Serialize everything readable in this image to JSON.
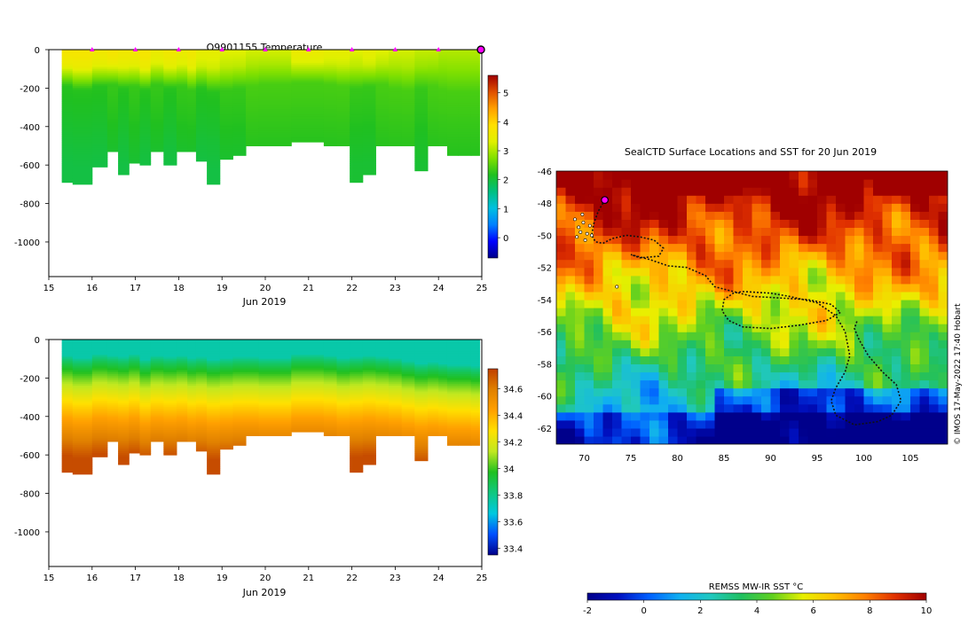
{
  "colors": {
    "temp_scale": [
      "#00008b",
      "#0000ff",
      "#0080ff",
      "#00c0e0",
      "#00c080",
      "#20c020",
      "#80e000",
      "#e0f000",
      "#ffe000",
      "#ffa000",
      "#e05000",
      "#a00000"
    ],
    "sal_scale": [
      "#00008b",
      "#0050ff",
      "#00c8e0",
      "#10c880",
      "#20c020",
      "#c0e820",
      "#ffe000",
      "#ffa000",
      "#e08000",
      "#c04000"
    ],
    "sst_scale": [
      "#00008b",
      "#0010c0",
      "#0060ff",
      "#10b0f0",
      "#20c8c0",
      "#20c060",
      "#60d020",
      "#e8f000",
      "#ffc000",
      "#ff8000",
      "#e03000",
      "#a00000"
    ],
    "marker": "#ff00ff",
    "track": "#111111"
  },
  "chart_data": [
    {
      "id": "temperature-section",
      "type": "heatmap",
      "title": "Q9901155  Temperature",
      "xlabel": "Jun 2019",
      "xlim": [
        15,
        25
      ],
      "xticks": [
        "15",
        "16",
        "17",
        "18",
        "19",
        "20",
        "21",
        "22",
        "23",
        "24",
        "25"
      ],
      "ylim": [
        -1180,
        0
      ],
      "yticks": [
        "0",
        "-200",
        "-400",
        "-600",
        "-800",
        "-1000"
      ],
      "colorbar": {
        "range": [
          -0.7,
          5.6
        ],
        "ticks": [
          "0",
          "1",
          "2",
          "3",
          "4",
          "5"
        ]
      },
      "profiles": {
        "x": [
          15.3,
          15.8,
          16.2,
          16.5,
          16.7,
          17.0,
          17.2,
          17.5,
          17.8,
          18.1,
          18.3,
          18.5,
          18.8,
          19.1,
          19.4,
          19.7,
          20.0,
          21.2,
          21.5,
          21.8,
          22.1,
          22.4,
          22.7,
          23.0,
          23.3,
          23.6,
          23.9,
          24.1,
          24.3,
          24.6,
          24.9
        ],
        "max_depth": [
          690,
          700,
          610,
          530,
          650,
          590,
          600,
          530,
          600,
          530,
          530,
          580,
          700,
          570,
          550,
          500,
          500,
          480,
          500,
          500,
          690,
          650,
          500,
          500,
          500,
          630,
          500,
          500,
          550,
          550,
          550
        ],
        "surface_temp": [
          3.5,
          3.5,
          3.4,
          3.5,
          3.4,
          3.4,
          3.5,
          3.3,
          3.4,
          3.3,
          3.4,
          3.2,
          3.2,
          3.1,
          3.1,
          3.0,
          3.0,
          3.3,
          3.2,
          3.2,
          3.1,
          3.2,
          3.1,
          3.0,
          3.0,
          2.9,
          2.9,
          2.8,
          2.8,
          2.8,
          2.8
        ],
        "mixed_layer_depth": [
          130,
          150,
          130,
          120,
          140,
          130,
          150,
          120,
          140,
          130,
          150,
          140,
          160,
          150,
          140,
          130,
          120,
          110,
          120,
          130,
          140,
          130,
          120,
          140,
          150,
          140,
          130,
          150,
          160,
          160,
          160
        ],
        "deep_temp": [
          2.0,
          2.0,
          2.0,
          2.1,
          2.0,
          2.1,
          2.0,
          2.1,
          2.0,
          2.1,
          2.1,
          2.0,
          2.0,
          2.1,
          2.1,
          2.2,
          2.2,
          2.2,
          2.2,
          2.2,
          2.1,
          2.1,
          2.2,
          2.2,
          2.2,
          2.1,
          2.2,
          2.2,
          2.2,
          2.2,
          2.2
        ]
      },
      "gap": [
        20.6,
        21.2
      ],
      "surface_markers_x": [
        16.0,
        17.0,
        18.0,
        19.0,
        20.0,
        21.0,
        22.0,
        23.0,
        24.0,
        24.98
      ]
    },
    {
      "id": "salinity-section",
      "type": "heatmap",
      "title": "",
      "xlabel": "Jun 2019",
      "xlim": [
        15,
        25
      ],
      "xticks": [
        "15",
        "16",
        "17",
        "18",
        "19",
        "20",
        "21",
        "22",
        "23",
        "24",
        "25"
      ],
      "ylim": [
        -1180,
        0
      ],
      "yticks": [
        "0",
        "-200",
        "-400",
        "-600",
        "-800",
        "-1000"
      ],
      "colorbar": {
        "range": [
          33.35,
          34.75
        ],
        "ticks": [
          "33.4",
          "33.6",
          "33.8",
          "34",
          "34.2",
          "34.4",
          "34.6"
        ]
      },
      "profiles": {
        "x": [
          15.3,
          15.8,
          16.2,
          16.5,
          16.7,
          17.0,
          17.2,
          17.5,
          17.8,
          18.1,
          18.3,
          18.5,
          18.8,
          19.1,
          19.4,
          19.7,
          20.0,
          21.2,
          21.5,
          21.8,
          22.1,
          22.4,
          22.7,
          23.0,
          23.3,
          23.6,
          23.9,
          24.1,
          24.3,
          24.6,
          24.9
        ],
        "max_depth": [
          690,
          700,
          610,
          530,
          650,
          590,
          600,
          530,
          600,
          530,
          530,
          580,
          700,
          570,
          550,
          500,
          500,
          480,
          500,
          500,
          690,
          650,
          500,
          500,
          500,
          630,
          500,
          500,
          550,
          550,
          550
        ],
        "surface_sal": 33.75,
        "halocline_top": [
          120,
          140,
          110,
          120,
          130,
          110,
          150,
          120,
          130,
          120,
          140,
          130,
          150,
          140,
          130,
          130,
          140,
          110,
          120,
          140,
          130,
          120,
          130,
          140,
          160,
          180,
          170,
          180,
          190,
          190,
          200
        ],
        "deep_sal": 34.72
      },
      "gap": [
        20.6,
        21.2
      ]
    },
    {
      "id": "sst-map",
      "type": "heatmap",
      "title": "SealCTD Surface Locations and SST for 20 Jun 2019",
      "xlim": [
        67,
        109
      ],
      "xticks": [
        "70",
        "75",
        "80",
        "85",
        "90",
        "95",
        "100",
        "105"
      ],
      "ylim": [
        -63,
        -46
      ],
      "yticks": [
        "-46",
        "-48",
        "-50",
        "-52",
        "-54",
        "-56",
        "-58",
        "-60",
        "-62"
      ],
      "credit": "© IMOS 17-May-2022 17:40 Hobart",
      "colorbar_label": "REMSS MW-IR SST °C",
      "colorbar": {
        "range": [
          -2,
          10
        ],
        "ticks": [
          "-2",
          "0",
          "2",
          "4",
          "6",
          "8",
          "10"
        ]
      },
      "track": {
        "lon": [
          72.2,
          71.5,
          71.0,
          70.8,
          71.2,
          72.0,
          73.0,
          74.5,
          76.0,
          77.5,
          78.5,
          78.0,
          76.0,
          75.0,
          77.0,
          79.0,
          81.0,
          83.0,
          84.0,
          86.0,
          88.0,
          91.0,
          94.0,
          96.5,
          97.5,
          96.0,
          93.0,
          90.0,
          87.0,
          85.5,
          84.8,
          85.0,
          86.0,
          87.0,
          90.0,
          92.0,
          95.0,
          97.0,
          98.0,
          98.5,
          98.0,
          97.0,
          96.5,
          97.0,
          99.0,
          101.5,
          103.0,
          104.0,
          103.5,
          102.0,
          100.5,
          99.5,
          99.0,
          99.3
        ],
        "lat": [
          -47.8,
          -48.5,
          -49.3,
          -50.0,
          -50.4,
          -50.5,
          -50.2,
          -50.0,
          -50.1,
          -50.3,
          -50.8,
          -51.3,
          -51.4,
          -51.2,
          -51.5,
          -51.9,
          -52.0,
          -52.5,
          -53.2,
          -53.5,
          -53.8,
          -53.9,
          -54.0,
          -54.3,
          -54.8,
          -55.3,
          -55.6,
          -55.8,
          -55.7,
          -55.3,
          -54.7,
          -54.0,
          -53.6,
          -53.5,
          -53.6,
          -53.8,
          -54.2,
          -55.0,
          -56.0,
          -57.5,
          -58.5,
          -59.5,
          -60.3,
          -61.2,
          -61.8,
          -61.6,
          -61.2,
          -60.3,
          -59.3,
          -58.5,
          -57.5,
          -56.5,
          -55.8,
          -55.3
        ],
        "latest": [
          72.2,
          -47.8
        ]
      },
      "scatter_points": [
        [
          69.0,
          -49.0
        ],
        [
          69.4,
          -49.5
        ],
        [
          69.9,
          -49.2
        ],
        [
          70.3,
          -49.9
        ],
        [
          69.6,
          -49.8
        ],
        [
          70.6,
          -49.4
        ],
        [
          69.2,
          -50.1
        ],
        [
          70.1,
          -50.3
        ],
        [
          70.8,
          -50.0
        ],
        [
          69.8,
          -48.7
        ],
        [
          73.5,
          -53.2
        ]
      ]
    }
  ]
}
